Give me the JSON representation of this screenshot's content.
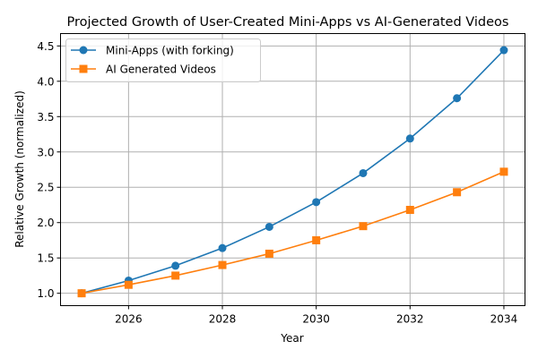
{
  "chart_data": {
    "type": "line",
    "title": "Projected Growth of User-Created Mini-Apps vs AI-Generated Videos",
    "xlabel": "Year",
    "ylabel": "Relative Growth (normalized)",
    "x": [
      2025,
      2026,
      2027,
      2028,
      2029,
      2030,
      2031,
      2032,
      2033,
      2034
    ],
    "xlim": [
      2024.55,
      2034.45
    ],
    "ylim": [
      0.825,
      4.675
    ],
    "xticks": [
      2026,
      2028,
      2030,
      2032,
      2034
    ],
    "yticks": [
      1.0,
      1.5,
      2.0,
      2.5,
      3.0,
      3.5,
      4.0,
      4.5
    ],
    "xtick_labels": [
      "2026",
      "2028",
      "2030",
      "2032",
      "2034"
    ],
    "ytick_labels": [
      "1.0",
      "1.5",
      "2.0",
      "2.5",
      "3.0",
      "3.5",
      "4.0",
      "4.5"
    ],
    "grid": true,
    "legend_position": "upper-left",
    "series": [
      {
        "name": "Mini-Apps (with forking)",
        "color": "#1f77b4",
        "marker": "circle",
        "values": [
          1.0,
          1.18,
          1.39,
          1.64,
          1.94,
          2.29,
          2.7,
          3.19,
          3.76,
          4.44
        ]
      },
      {
        "name": "AI Generated Videos",
        "color": "#ff7f0e",
        "marker": "square",
        "values": [
          1.0,
          1.12,
          1.25,
          1.4,
          1.56,
          1.75,
          1.95,
          2.18,
          2.43,
          2.72
        ]
      }
    ]
  }
}
